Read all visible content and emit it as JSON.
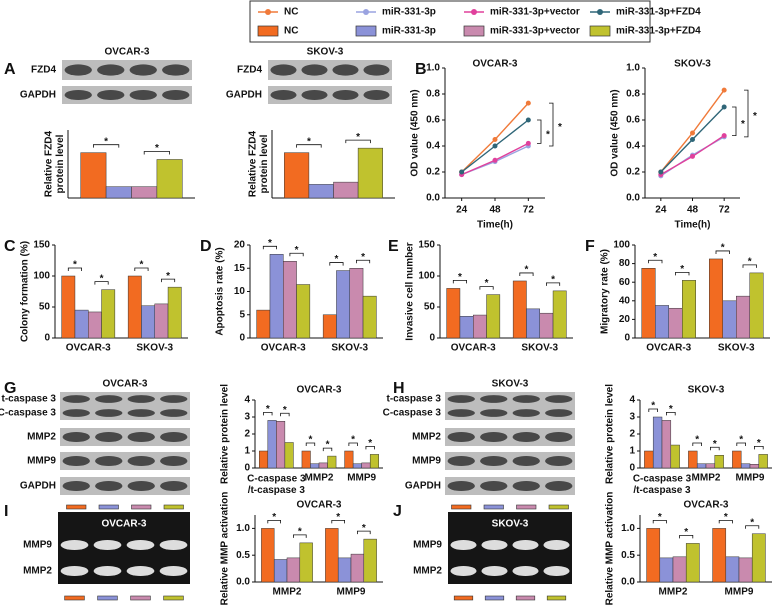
{
  "legend": {
    "lines": [
      {
        "name": "NC",
        "color": "#f07a3a"
      },
      {
        "name": "miR-331-3p",
        "color": "#9aa3e0"
      },
      {
        "name": "miR-331-3p+vector",
        "color": "#e0409c"
      },
      {
        "name": "miR-331-3p+FZD4",
        "color": "#2f6678"
      }
    ],
    "bars": [
      {
        "name": "NC",
        "color": "#f26b21"
      },
      {
        "name": "miR-331-3p",
        "color": "#8b92d8"
      },
      {
        "name": "miR-331-3p+vector",
        "color": "#c98aae"
      },
      {
        "name": "miR-331-3p+FZD4",
        "color": "#c0c22e"
      }
    ]
  },
  "panels": [
    "A",
    "B",
    "C",
    "D",
    "E",
    "F",
    "G",
    "H",
    "I",
    "J"
  ],
  "blots": [
    {
      "title": "OVCAR-3",
      "rows": [
        "FZD4",
        "GAPDH"
      ]
    },
    {
      "title": "SKOV-3",
      "rows": [
        "FZD4",
        "GAPDH"
      ]
    },
    {
      "title": "OVCAR-3",
      "rows": [
        "t-caspase 3",
        "C-caspase 3",
        "MMP2",
        "MMP9",
        "GAPDH"
      ]
    },
    {
      "title": "SKOV-3",
      "rows": [
        "t-caspase 3",
        "C-caspase 3",
        "MMP2",
        "MMP9",
        "GAPDH"
      ]
    },
    {
      "title": "OVCAR-3",
      "rows": [
        "MMP9",
        "MMP2"
      ],
      "gel": true
    },
    {
      "title": "SKOV-3",
      "rows": [
        "MMP9",
        "MMP2"
      ],
      "gel": true
    }
  ],
  "chart_data": [
    {
      "type": "bar",
      "y_label": "Relative FZD4\nprotein level",
      "categories": [
        null
      ],
      "ylim": [
        0,
        1.5
      ],
      "sig_label": "*",
      "series": [
        {
          "color": "#f26b21",
          "values": [
            1.0
          ]
        },
        {
          "color": "#8b92d8",
          "values": [
            0.25
          ]
        },
        {
          "color": "#c98aae",
          "values": [
            0.25
          ]
        },
        {
          "color": "#c0c22e",
          "values": [
            0.85
          ]
        }
      ]
    },
    {
      "type": "bar",
      "y_label": "Relative FZD4\nprotein level",
      "categories": [
        null
      ],
      "ylim": [
        0,
        1.5
      ],
      "sig_label": "*",
      "series": [
        {
          "color": "#f26b21",
          "values": [
            1.0
          ]
        },
        {
          "color": "#8b92d8",
          "values": [
            0.3
          ]
        },
        {
          "color": "#c98aae",
          "values": [
            0.35
          ]
        },
        {
          "color": "#c0c22e",
          "values": [
            1.1
          ]
        }
      ]
    },
    {
      "type": "line",
      "title": "OVCAR-3",
      "x_label": "Time(h)",
      "y_label": "OD value (450 nm)",
      "x": [
        24,
        48,
        72
      ],
      "xlim": [
        12,
        84
      ],
      "xticks": [
        24,
        48,
        72
      ],
      "ylim": [
        0,
        1.0
      ],
      "yticks": [
        {
          "value": 0,
          "label": "0.0"
        },
        0.2,
        0.4,
        0.6,
        0.8,
        {
          "value": 1,
          "label": "1.0"
        }
      ],
      "sig_label": "*",
      "series": [
        {
          "color": "#f07a3a",
          "values": [
            0.2,
            0.45,
            0.73
          ]
        },
        {
          "color": "#9aa3e0",
          "values": [
            0.18,
            0.28,
            0.4
          ]
        },
        {
          "color": "#e0409c",
          "values": [
            0.18,
            0.29,
            0.42
          ]
        },
        {
          "color": "#2f6678",
          "values": [
            0.2,
            0.4,
            0.6
          ]
        }
      ]
    },
    {
      "type": "line",
      "title": "SKOV-3",
      "x_label": "Time(h)",
      "y_label": "OD value (450 nm)",
      "x": [
        24,
        48,
        72
      ],
      "xlim": [
        12,
        84
      ],
      "xticks": [
        24,
        48,
        72
      ],
      "ylim": [
        0,
        1.0
      ],
      "yticks": [
        {
          "value": 0,
          "label": "0.0"
        },
        0.2,
        0.4,
        0.6,
        0.8,
        {
          "value": 1,
          "label": "1.0"
        }
      ],
      "sig_label": "*",
      "series": [
        {
          "color": "#f07a3a",
          "values": [
            0.2,
            0.5,
            0.83
          ]
        },
        {
          "color": "#9aa3e0",
          "values": [
            0.17,
            0.33,
            0.47
          ]
        },
        {
          "color": "#e0409c",
          "values": [
            0.18,
            0.32,
            0.48
          ]
        },
        {
          "color": "#2f6678",
          "values": [
            0.2,
            0.45,
            0.7
          ]
        }
      ]
    },
    {
      "type": "bar",
      "y_label": "Colony formation (%)",
      "categories": [
        "OVCAR-3",
        "SKOV-3"
      ],
      "ylim": [
        0,
        150
      ],
      "yticks": [
        0,
        50,
        100,
        150
      ],
      "sig_label": "*",
      "series": [
        {
          "color": "#f26b21",
          "values": [
            100,
            100
          ]
        },
        {
          "color": "#8b92d8",
          "values": [
            45,
            52
          ]
        },
        {
          "color": "#c98aae",
          "values": [
            42,
            55
          ]
        },
        {
          "color": "#c0c22e",
          "values": [
            78,
            82
          ]
        }
      ]
    },
    {
      "type": "bar",
      "y_label": "Apoptosis rate (%)",
      "categories": [
        "OVCAR-3",
        "SKOV-3"
      ],
      "ylim": [
        0,
        20
      ],
      "yticks": [
        0,
        5,
        10,
        15,
        20
      ],
      "sig_label": "*",
      "series": [
        {
          "color": "#f26b21",
          "values": [
            6,
            5
          ]
        },
        {
          "color": "#8b92d8",
          "values": [
            18,
            14.5
          ]
        },
        {
          "color": "#c98aae",
          "values": [
            16.5,
            15
          ]
        },
        {
          "color": "#c0c22e",
          "values": [
            11.5,
            9
          ]
        }
      ]
    },
    {
      "type": "bar",
      "y_label": "Invasive cell number",
      "categories": [
        "OVCAR-3",
        "SKOV-3"
      ],
      "ylim": [
        0,
        150
      ],
      "yticks": [
        0,
        50,
        100,
        150
      ],
      "sig_label": "*",
      "series": [
        {
          "color": "#f26b21",
          "values": [
            80,
            92
          ]
        },
        {
          "color": "#8b92d8",
          "values": [
            35,
            47
          ]
        },
        {
          "color": "#c98aae",
          "values": [
            37,
            40
          ]
        },
        {
          "color": "#c0c22e",
          "values": [
            70,
            76
          ]
        }
      ]
    },
    {
      "type": "bar",
      "y_label": "Migratory rate (%)",
      "categories": [
        "OVCAR-3",
        "SKOV-3"
      ],
      "ylim": [
        0,
        100
      ],
      "yticks": [
        0,
        20,
        40,
        60,
        80,
        100
      ],
      "sig_label": "*",
      "series": [
        {
          "color": "#f26b21",
          "values": [
            75,
            85
          ]
        },
        {
          "color": "#8b92d8",
          "values": [
            35,
            40
          ]
        },
        {
          "color": "#c98aae",
          "values": [
            32,
            45
          ]
        },
        {
          "color": "#c0c22e",
          "values": [
            62,
            70
          ]
        }
      ]
    },
    {
      "type": "bar",
      "title": "OVCAR-3",
      "y_label": "Relative protein level",
      "categories": [
        "C-caspase 3\n/t-caspase 3",
        "MMP2",
        "MMP9"
      ],
      "ylim": [
        0,
        4
      ],
      "yticks": [
        0,
        1,
        2,
        3,
        4
      ],
      "sig_label": "*",
      "series": [
        {
          "color": "#f26b21",
          "values": [
            1,
            1,
            1
          ]
        },
        {
          "color": "#8b92d8",
          "values": [
            2.8,
            0.25,
            0.25
          ]
        },
        {
          "color": "#c98aae",
          "values": [
            2.75,
            0.3,
            0.3
          ]
        },
        {
          "color": "#c0c22e",
          "values": [
            1.5,
            0.7,
            0.8
          ]
        }
      ]
    },
    {
      "type": "bar",
      "title": "SKOV-3",
      "y_label": "Relative protein level",
      "categories": [
        "C-caspase 3\n/t-caspase 3",
        "MMP2",
        "MMP9"
      ],
      "ylim": [
        0,
        4
      ],
      "yticks": [
        0,
        1,
        2,
        3,
        4
      ],
      "sig_label": "*",
      "series": [
        {
          "color": "#f26b21",
          "values": [
            1,
            1,
            1
          ]
        },
        {
          "color": "#8b92d8",
          "values": [
            3.0,
            0.25,
            0.25
          ]
        },
        {
          "color": "#c98aae",
          "values": [
            2.8,
            0.25,
            0.22
          ]
        },
        {
          "color": "#c0c22e",
          "values": [
            1.35,
            0.75,
            0.8
          ]
        }
      ]
    },
    {
      "type": "bar",
      "title": "OVCAR-3",
      "y_label": "Relative MMP activation",
      "categories": [
        "MMP2",
        "MMP9"
      ],
      "ylim": [
        0,
        1.25
      ],
      "yticks": [
        {
          "value": 0,
          "label": "0.0"
        },
        0.5,
        {
          "value": 1,
          "label": "1.0"
        }
      ],
      "sig_label": "*",
      "series": [
        {
          "color": "#f26b21",
          "values": [
            1,
            1
          ]
        },
        {
          "color": "#8b92d8",
          "values": [
            0.42,
            0.45
          ]
        },
        {
          "color": "#c98aae",
          "values": [
            0.45,
            0.52
          ]
        },
        {
          "color": "#c0c22e",
          "values": [
            0.73,
            0.8
          ]
        }
      ]
    },
    {
      "type": "bar",
      "title": "OVCAR-3",
      "y_label": "Relative MMP activation",
      "categories": [
        "MMP2",
        "MMP9"
      ],
      "ylim": [
        0,
        1.25
      ],
      "yticks": [
        {
          "value": 0,
          "label": "0.0"
        },
        0.5,
        {
          "value": 1,
          "label": "1.0"
        }
      ],
      "sig_label": "*",
      "series": [
        {
          "color": "#f26b21",
          "values": [
            1,
            1
          ]
        },
        {
          "color": "#8b92d8",
          "values": [
            0.45,
            0.47
          ]
        },
        {
          "color": "#c98aae",
          "values": [
            0.47,
            0.45
          ]
        },
        {
          "color": "#c0c22e",
          "values": [
            0.72,
            0.9
          ]
        }
      ]
    }
  ]
}
